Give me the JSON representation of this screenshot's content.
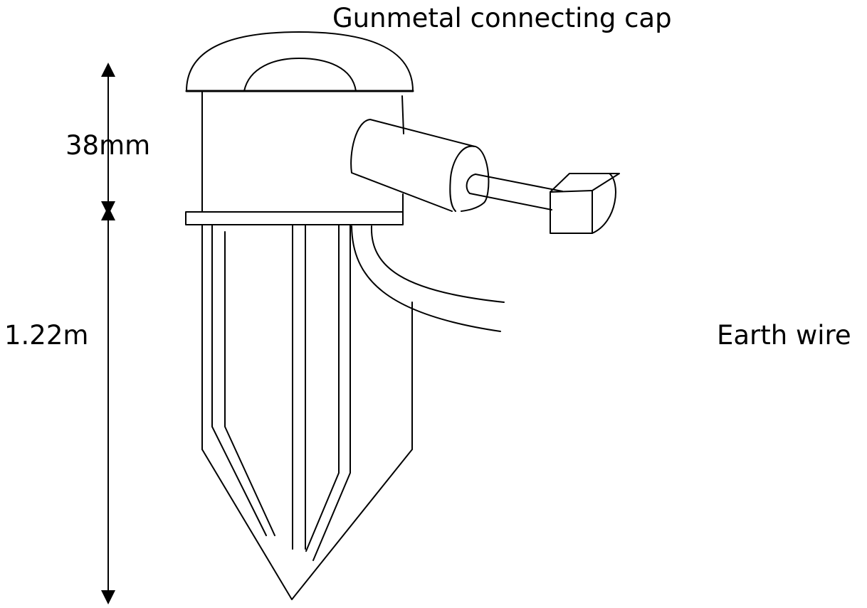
{
  "labels": {
    "cap": "Gunmetal connecting cap",
    "height_small": "38mm",
    "height_large": "1.22m",
    "earth_wire": "Earth wire"
  },
  "colors": {
    "stroke": "#000000",
    "background": "#ffffff"
  }
}
